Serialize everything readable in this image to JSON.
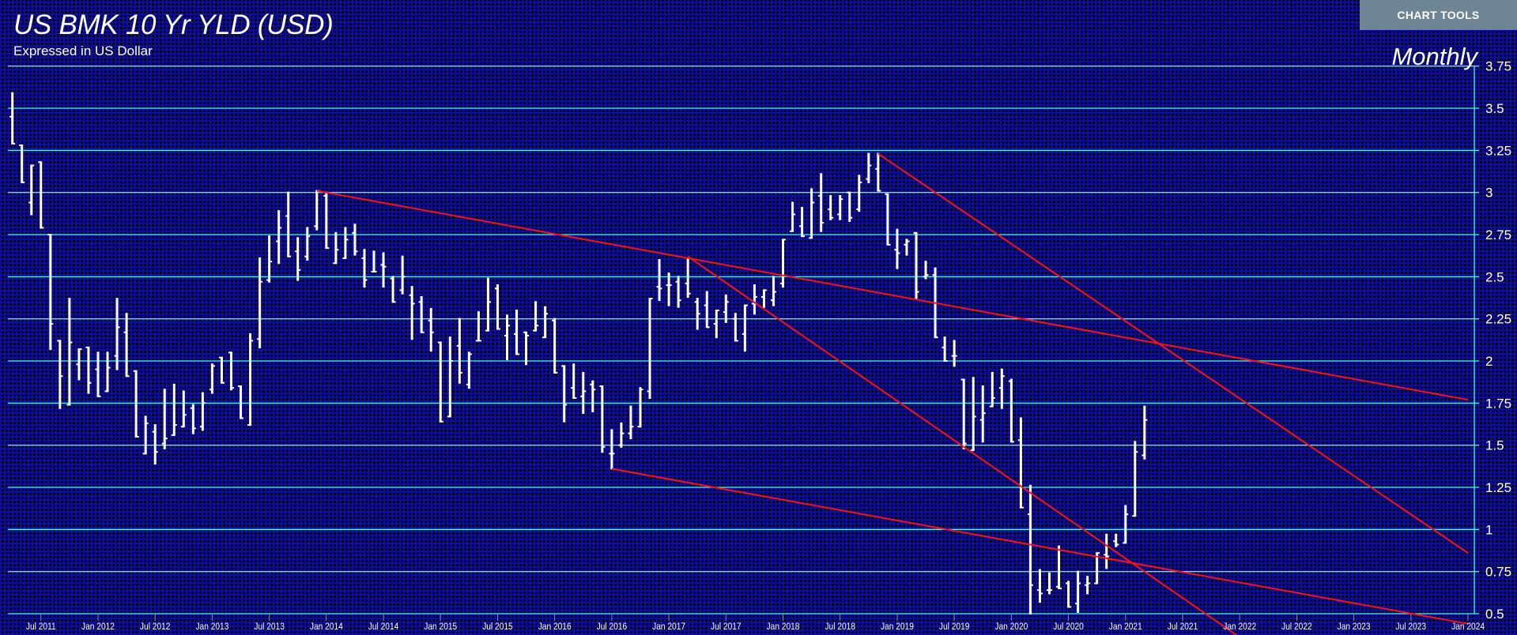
{
  "header": {
    "title": "US BMK 10 Yr YLD (USD)",
    "subtitle": "Expressed in US Dollar",
    "frequency": "Monthly",
    "chart_tools_label": "CHART TOOLS"
  },
  "colors": {
    "background": "#000010",
    "grid_fine": "#0c0ca6",
    "gridline": "#40ffe0",
    "bars": "#ffffff",
    "trendlines": "#ff1010",
    "chart_tools_bg": "#6f8593"
  },
  "chart_data": {
    "type": "ohlc",
    "title": "US BMK 10 Yr YLD (USD)",
    "subtitle": "Expressed in US Dollar",
    "frequency": "Monthly",
    "ylim": [
      0.5,
      3.75
    ],
    "y_axis_position": "right",
    "y_ticks": [
      "3.75",
      "3.5",
      "3.25",
      "3",
      "2.75",
      "2.5",
      "2.25",
      "2",
      "1.75",
      "1.5",
      "1.25",
      "1",
      "0.75",
      "0.5"
    ],
    "y_tick_values": [
      3.75,
      3.5,
      3.25,
      3.0,
      2.75,
      2.5,
      2.25,
      2.0,
      1.75,
      1.5,
      1.25,
      1.0,
      0.75,
      0.5
    ],
    "x_ticks": [
      "Jul 2011",
      "Jan 2012",
      "Jul 2012",
      "Jan 2013",
      "Jul 2013",
      "Jan 2014",
      "Jul 2014",
      "Jan 2015",
      "Jul 2015",
      "Jan 2016",
      "Jul 2016",
      "Jan 2017",
      "Jul 2017",
      "Jan 2018",
      "Jul 2018",
      "Jan 2019",
      "Jul 2019",
      "Jan 2020",
      "Jul 2020",
      "Jan 2021",
      "Jul 2021",
      "Jan 2022",
      "Jul 2022",
      "Jan 2023",
      "Jul 2023",
      "Jan 2024"
    ],
    "x_tick_months": [
      "2011-07",
      "2012-01",
      "2012-07",
      "2013-01",
      "2013-07",
      "2014-01",
      "2014-07",
      "2015-01",
      "2015-07",
      "2016-01",
      "2016-07",
      "2017-01",
      "2017-07",
      "2018-01",
      "2018-07",
      "2019-01",
      "2019-07",
      "2020-01",
      "2020-07",
      "2021-01",
      "2021-07",
      "2022-01",
      "2022-07",
      "2023-01",
      "2023-07",
      "2024-01"
    ],
    "xlim": [
      "2011-03",
      "2024-02"
    ],
    "grid": true,
    "fields": [
      "month",
      "open",
      "high",
      "low",
      "close"
    ],
    "bars": [
      [
        "2011-04",
        3.45,
        3.59,
        3.29,
        3.29
      ],
      [
        "2011-05",
        3.28,
        3.28,
        3.06,
        3.06
      ],
      [
        "2011-06",
        2.94,
        3.16,
        2.87,
        3.16
      ],
      [
        "2011-07",
        3.18,
        3.18,
        2.79,
        2.79
      ],
      [
        "2011-08",
        2.75,
        2.75,
        2.07,
        2.22
      ],
      [
        "2011-09",
        2.12,
        2.12,
        1.72,
        1.91
      ],
      [
        "2011-10",
        1.74,
        2.37,
        1.74,
        2.11
      ],
      [
        "2011-11",
        1.98,
        2.07,
        1.89,
        2.07
      ],
      [
        "2011-12",
        2.08,
        2.08,
        1.81,
        1.87
      ],
      [
        "2012-01",
        1.95,
        2.05,
        1.79,
        1.79
      ],
      [
        "2012-02",
        1.82,
        2.05,
        1.82,
        1.96
      ],
      [
        "2012-03",
        2.03,
        2.37,
        1.95,
        2.2
      ],
      [
        "2012-04",
        2.17,
        2.28,
        1.91,
        1.91
      ],
      [
        "2012-05",
        1.94,
        1.94,
        1.55,
        1.55
      ],
      [
        "2012-06",
        1.45,
        1.67,
        1.45,
        1.63
      ],
      [
        "2012-07",
        1.58,
        1.62,
        1.39,
        1.46
      ],
      [
        "2012-08",
        1.51,
        1.83,
        1.48,
        1.54
      ],
      [
        "2012-09",
        1.56,
        1.86,
        1.56,
        1.62
      ],
      [
        "2012-10",
        1.61,
        1.82,
        1.61,
        1.68
      ],
      [
        "2012-11",
        1.72,
        1.74,
        1.57,
        1.6
      ],
      [
        "2012-12",
        1.61,
        1.81,
        1.59,
        1.75
      ],
      [
        "2013-01",
        1.83,
        1.98,
        1.81,
        1.97
      ],
      [
        "2013-02",
        2.02,
        2.02,
        1.87,
        1.87
      ],
      [
        "2013-03",
        2.05,
        2.05,
        1.83,
        1.84
      ],
      [
        "2013-04",
        1.85,
        1.85,
        1.66,
        1.66
      ],
      [
        "2013-05",
        1.62,
        2.16,
        1.62,
        2.12
      ],
      [
        "2013-06",
        2.13,
        2.61,
        2.08,
        2.47
      ],
      [
        "2013-07",
        2.48,
        2.74,
        2.47,
        2.59
      ],
      [
        "2013-08",
        2.71,
        2.89,
        2.58,
        2.79
      ],
      [
        "2013-09",
        2.86,
        3.0,
        2.62,
        2.62
      ],
      [
        "2013-10",
        2.65,
        2.73,
        2.48,
        2.54
      ],
      [
        "2013-11",
        2.62,
        2.79,
        2.6,
        2.74
      ],
      [
        "2013-12",
        2.8,
        3.01,
        2.78,
        3.01
      ],
      [
        "2014-01",
        2.98,
        3.0,
        2.67,
        2.67
      ],
      [
        "2014-02",
        2.58,
        2.76,
        2.58,
        2.66
      ],
      [
        "2014-03",
        2.61,
        2.79,
        2.61,
        2.72
      ],
      [
        "2014-04",
        2.76,
        2.81,
        2.63,
        2.65
      ],
      [
        "2014-05",
        2.61,
        2.66,
        2.44,
        2.48
      ],
      [
        "2014-06",
        2.53,
        2.65,
        2.53,
        2.53
      ],
      [
        "2014-07",
        2.57,
        2.64,
        2.44,
        2.56
      ],
      [
        "2014-08",
        2.49,
        2.5,
        2.35,
        2.35
      ],
      [
        "2014-09",
        2.42,
        2.62,
        2.4,
        2.5
      ],
      [
        "2014-10",
        2.39,
        2.44,
        2.13,
        2.34
      ],
      [
        "2014-11",
        2.35,
        2.38,
        2.17,
        2.17
      ],
      [
        "2014-12",
        2.24,
        2.31,
        2.06,
        2.17
      ],
      [
        "2015-01",
        2.11,
        2.11,
        1.64,
        1.64
      ],
      [
        "2015-02",
        1.67,
        2.14,
        1.67,
        2.0
      ],
      [
        "2015-03",
        2.09,
        2.25,
        1.87,
        1.93
      ],
      [
        "2015-04",
        1.86,
        2.05,
        1.84,
        2.04
      ],
      [
        "2015-05",
        2.12,
        2.29,
        2.12,
        2.12
      ],
      [
        "2015-06",
        2.18,
        2.49,
        2.18,
        2.35
      ],
      [
        "2015-07",
        2.43,
        2.45,
        2.19,
        2.19
      ],
      [
        "2015-08",
        2.15,
        2.27,
        2.01,
        2.21
      ],
      [
        "2015-09",
        2.16,
        2.3,
        2.04,
        2.04
      ],
      [
        "2015-10",
        2.17,
        2.17,
        1.98,
        2.15
      ],
      [
        "2015-11",
        2.18,
        2.35,
        2.18,
        2.21
      ],
      [
        "2015-12",
        2.14,
        2.32,
        2.14,
        2.28
      ],
      [
        "2016-01",
        2.24,
        2.25,
        1.93,
        1.93
      ],
      [
        "2016-02",
        1.97,
        1.97,
        1.64,
        1.74
      ],
      [
        "2016-03",
        1.84,
        1.98,
        1.78,
        1.78
      ],
      [
        "2016-04",
        1.79,
        1.93,
        1.69,
        1.82
      ],
      [
        "2016-05",
        1.86,
        1.88,
        1.7,
        1.83
      ],
      [
        "2016-06",
        1.85,
        1.85,
        1.46,
        1.49
      ],
      [
        "2016-07",
        1.45,
        1.59,
        1.36,
        1.45
      ],
      [
        "2016-08",
        1.5,
        1.63,
        1.49,
        1.57
      ],
      [
        "2016-09",
        1.57,
        1.73,
        1.54,
        1.61
      ],
      [
        "2016-10",
        1.61,
        1.84,
        1.61,
        1.83
      ],
      [
        "2016-11",
        1.82,
        2.37,
        1.78,
        2.37
      ],
      [
        "2016-12",
        2.44,
        2.6,
        2.36,
        2.43
      ],
      [
        "2017-01",
        2.45,
        2.52,
        2.33,
        2.45
      ],
      [
        "2017-02",
        2.47,
        2.5,
        2.32,
        2.36
      ],
      [
        "2017-03",
        2.46,
        2.61,
        2.38,
        2.4
      ],
      [
        "2017-04",
        2.35,
        2.37,
        2.19,
        2.28
      ],
      [
        "2017-05",
        2.33,
        2.41,
        2.2,
        2.2
      ],
      [
        "2017-06",
        2.22,
        2.3,
        2.14,
        2.3
      ],
      [
        "2017-07",
        2.29,
        2.39,
        2.23,
        2.35
      ],
      [
        "2017-08",
        2.25,
        2.28,
        2.12,
        2.12
      ],
      [
        "2017-09",
        2.16,
        2.33,
        2.06,
        2.33
      ],
      [
        "2017-10",
        2.34,
        2.45,
        2.28,
        2.38
      ],
      [
        "2017-11",
        2.38,
        2.42,
        2.32,
        2.42
      ],
      [
        "2017-12",
        2.36,
        2.5,
        2.33,
        2.41
      ],
      [
        "2018-01",
        2.46,
        2.72,
        2.44,
        2.72
      ],
      [
        "2018-02",
        2.77,
        2.94,
        2.77,
        2.87
      ],
      [
        "2018-03",
        2.8,
        2.91,
        2.74,
        2.74
      ],
      [
        "2018-04",
        2.73,
        3.02,
        2.73,
        2.94
      ],
      [
        "2018-05",
        2.98,
        3.11,
        2.77,
        2.82
      ],
      [
        "2018-06",
        2.9,
        2.98,
        2.84,
        2.85
      ],
      [
        "2018-07",
        2.87,
        2.98,
        2.84,
        2.96
      ],
      [
        "2018-08",
        3.0,
        3.0,
        2.83,
        2.85
      ],
      [
        "2018-09",
        2.9,
        3.1,
        2.89,
        3.06
      ],
      [
        "2018-10",
        3.08,
        3.23,
        3.06,
        3.16
      ],
      [
        "2018-11",
        3.14,
        3.23,
        3.01,
        3.01
      ],
      [
        "2018-12",
        2.99,
        2.99,
        2.69,
        2.69
      ],
      [
        "2019-01",
        2.66,
        2.78,
        2.55,
        2.64
      ],
      [
        "2019-02",
        2.69,
        2.72,
        2.63,
        2.71
      ],
      [
        "2019-03",
        2.76,
        2.76,
        2.37,
        2.41
      ],
      [
        "2019-04",
        2.5,
        2.59,
        2.49,
        2.51
      ],
      [
        "2019-05",
        2.51,
        2.55,
        2.14,
        2.14
      ],
      [
        "2019-06",
        2.08,
        2.14,
        2.0,
        2.0
      ],
      [
        "2019-07",
        2.03,
        2.12,
        1.97,
        2.03
      ],
      [
        "2019-08",
        1.89,
        1.89,
        1.48,
        1.51
      ],
      [
        "2019-09",
        1.47,
        1.9,
        1.47,
        1.67
      ],
      [
        "2019-10",
        1.65,
        1.85,
        1.52,
        1.69
      ],
      [
        "2019-11",
        1.73,
        1.93,
        1.73,
        1.78
      ],
      [
        "2019-12",
        1.84,
        1.95,
        1.72,
        1.91
      ],
      [
        "2020-01",
        1.88,
        1.89,
        1.52,
        1.52
      ],
      [
        "2020-02",
        1.53,
        1.66,
        1.13,
        1.13
      ],
      [
        "2020-03",
        1.09,
        1.26,
        0.5,
        0.67
      ],
      [
        "2020-04",
        0.64,
        0.76,
        0.57,
        0.62
      ],
      [
        "2020-05",
        0.64,
        0.74,
        0.62,
        0.64
      ],
      [
        "2020-06",
        0.66,
        0.9,
        0.65,
        0.65
      ],
      [
        "2020-07",
        0.68,
        0.69,
        0.54,
        0.54
      ],
      [
        "2020-08",
        0.56,
        0.75,
        0.51,
        0.68
      ],
      [
        "2020-09",
        0.67,
        0.72,
        0.62,
        0.68
      ],
      [
        "2020-10",
        0.68,
        0.86,
        0.68,
        0.86
      ],
      [
        "2020-11",
        0.85,
        0.97,
        0.77,
        0.84
      ],
      [
        "2020-12",
        0.93,
        0.97,
        0.9,
        0.91
      ],
      [
        "2021-01",
        0.92,
        1.14,
        0.92,
        1.09
      ],
      [
        "2021-02",
        1.08,
        1.52,
        1.08,
        1.46
      ],
      [
        "2021-03",
        1.44,
        1.73,
        1.42,
        1.65
      ]
    ],
    "trendlines": [
      {
        "from": [
          "2013-12",
          3.01
        ],
        "to": [
          "2024-01",
          1.77
        ]
      },
      {
        "from": [
          "2018-11",
          3.23
        ],
        "to": [
          "2024-01",
          0.86
        ]
      },
      {
        "from": [
          "2017-03",
          2.62
        ],
        "to": [
          "2022-01",
          0.36
        ]
      },
      {
        "from": [
          "2016-07",
          1.36
        ],
        "to": [
          "2024-01",
          0.44
        ]
      }
    ]
  }
}
